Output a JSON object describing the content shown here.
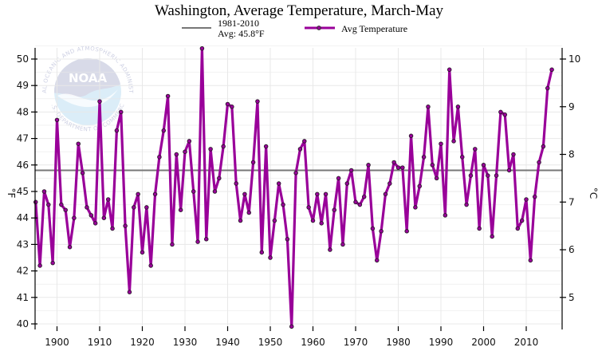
{
  "chart_data": {
    "type": "line",
    "title": "Washington, Average Temperature, March-May",
    "xlabel": "",
    "ylabel": "°F",
    "ylabel_right": "°C",
    "xlim": [
      1895,
      2017
    ],
    "ylim": [
      39.8,
      50.7
    ],
    "ylim_right_c": [
      4.33,
      10.39
    ],
    "grid": true,
    "legend_position": "top-center",
    "x_ticks": [
      1900,
      1910,
      1920,
      1930,
      1940,
      1950,
      1960,
      1970,
      1980,
      1990,
      2000,
      2010
    ],
    "y_ticks": [
      40,
      41,
      42,
      43,
      44,
      45,
      46,
      47,
      48,
      49,
      50
    ],
    "y_ticks_right": [
      5,
      6,
      7,
      8,
      9,
      10
    ],
    "reference_line": {
      "name": "1981-2010",
      "label_line2": "Avg: 45.8°F",
      "value": 45.8,
      "color": "#777777"
    },
    "series": [
      {
        "name": "Avg Temperature",
        "color": "#990099",
        "marker_color": "#7a1a7a",
        "x": [
          1895,
          1896,
          1897,
          1898,
          1899,
          1900,
          1901,
          1902,
          1903,
          1904,
          1905,
          1906,
          1907,
          1908,
          1909,
          1910,
          1911,
          1912,
          1913,
          1914,
          1915,
          1916,
          1917,
          1918,
          1919,
          1920,
          1921,
          1922,
          1923,
          1924,
          1925,
          1926,
          1927,
          1928,
          1929,
          1930,
          1931,
          1932,
          1933,
          1934,
          1935,
          1936,
          1937,
          1938,
          1939,
          1940,
          1941,
          1942,
          1943,
          1944,
          1945,
          1946,
          1947,
          1948,
          1949,
          1950,
          1951,
          1952,
          1953,
          1954,
          1955,
          1956,
          1957,
          1958,
          1959,
          1960,
          1961,
          1962,
          1963,
          1964,
          1965,
          1966,
          1967,
          1968,
          1969,
          1970,
          1971,
          1972,
          1973,
          1974,
          1975,
          1976,
          1977,
          1978,
          1979,
          1980,
          1981,
          1982,
          1983,
          1984,
          1985,
          1986,
          1987,
          1988,
          1989,
          1990,
          1991,
          1992,
          1993,
          1994,
          1995,
          1996,
          1997,
          1998,
          1999,
          2000,
          2001,
          2002,
          2003,
          2004,
          2005,
          2006,
          2007,
          2008,
          2009,
          2010,
          2011,
          2012,
          2013,
          2014,
          2015,
          2016
        ],
        "values": [
          44.6,
          42.2,
          45.0,
          44.5,
          42.3,
          47.7,
          44.5,
          44.3,
          42.9,
          44.0,
          46.8,
          45.7,
          44.4,
          44.1,
          43.8,
          48.4,
          44.0,
          44.7,
          43.6,
          47.3,
          48.0,
          43.7,
          41.2,
          44.4,
          44.9,
          42.7,
          44.4,
          42.2,
          44.9,
          46.3,
          47.3,
          48.6,
          43.0,
          46.4,
          44.3,
          46.5,
          46.9,
          45.0,
          43.1,
          50.4,
          43.2,
          46.6,
          45.0,
          45.5,
          46.7,
          48.3,
          48.2,
          45.3,
          43.9,
          44.9,
          44.2,
          46.1,
          48.4,
          42.7,
          46.7,
          42.5,
          43.9,
          45.3,
          44.5,
          43.2,
          39.9,
          45.7,
          46.6,
          46.9,
          44.4,
          43.9,
          44.9,
          43.8,
          44.9,
          42.8,
          44.3,
          45.5,
          43.0,
          45.3,
          45.8,
          44.6,
          44.5,
          44.8,
          46.0,
          43.6,
          42.4,
          43.5,
          44.9,
          45.3,
          46.1,
          45.9,
          45.9,
          43.5,
          47.1,
          44.4,
          45.2,
          46.3,
          48.2,
          46.0,
          45.5,
          46.8,
          44.1,
          49.6,
          46.9,
          48.2,
          46.3,
          44.5,
          45.6,
          46.6,
          43.6,
          46.0,
          45.6,
          43.3,
          45.6,
          48.0,
          47.9,
          45.8,
          46.4,
          43.6,
          43.9,
          44.7,
          42.4,
          44.8,
          46.1,
          46.7,
          48.9,
          49.6
        ]
      }
    ]
  },
  "watermark": {
    "logo_word": "NOAA",
    "ring_top": "NATIONAL OCEANIC AND ATMOSPHERIC ADMINISTRATION",
    "ring_bottom": "U.S. DEPARTMENT OF COMMERCE"
  },
  "legend": {
    "ref_line1": "1981-2010",
    "ref_line2": "Avg: 45.8°F",
    "series_label": "Avg Temperature"
  }
}
